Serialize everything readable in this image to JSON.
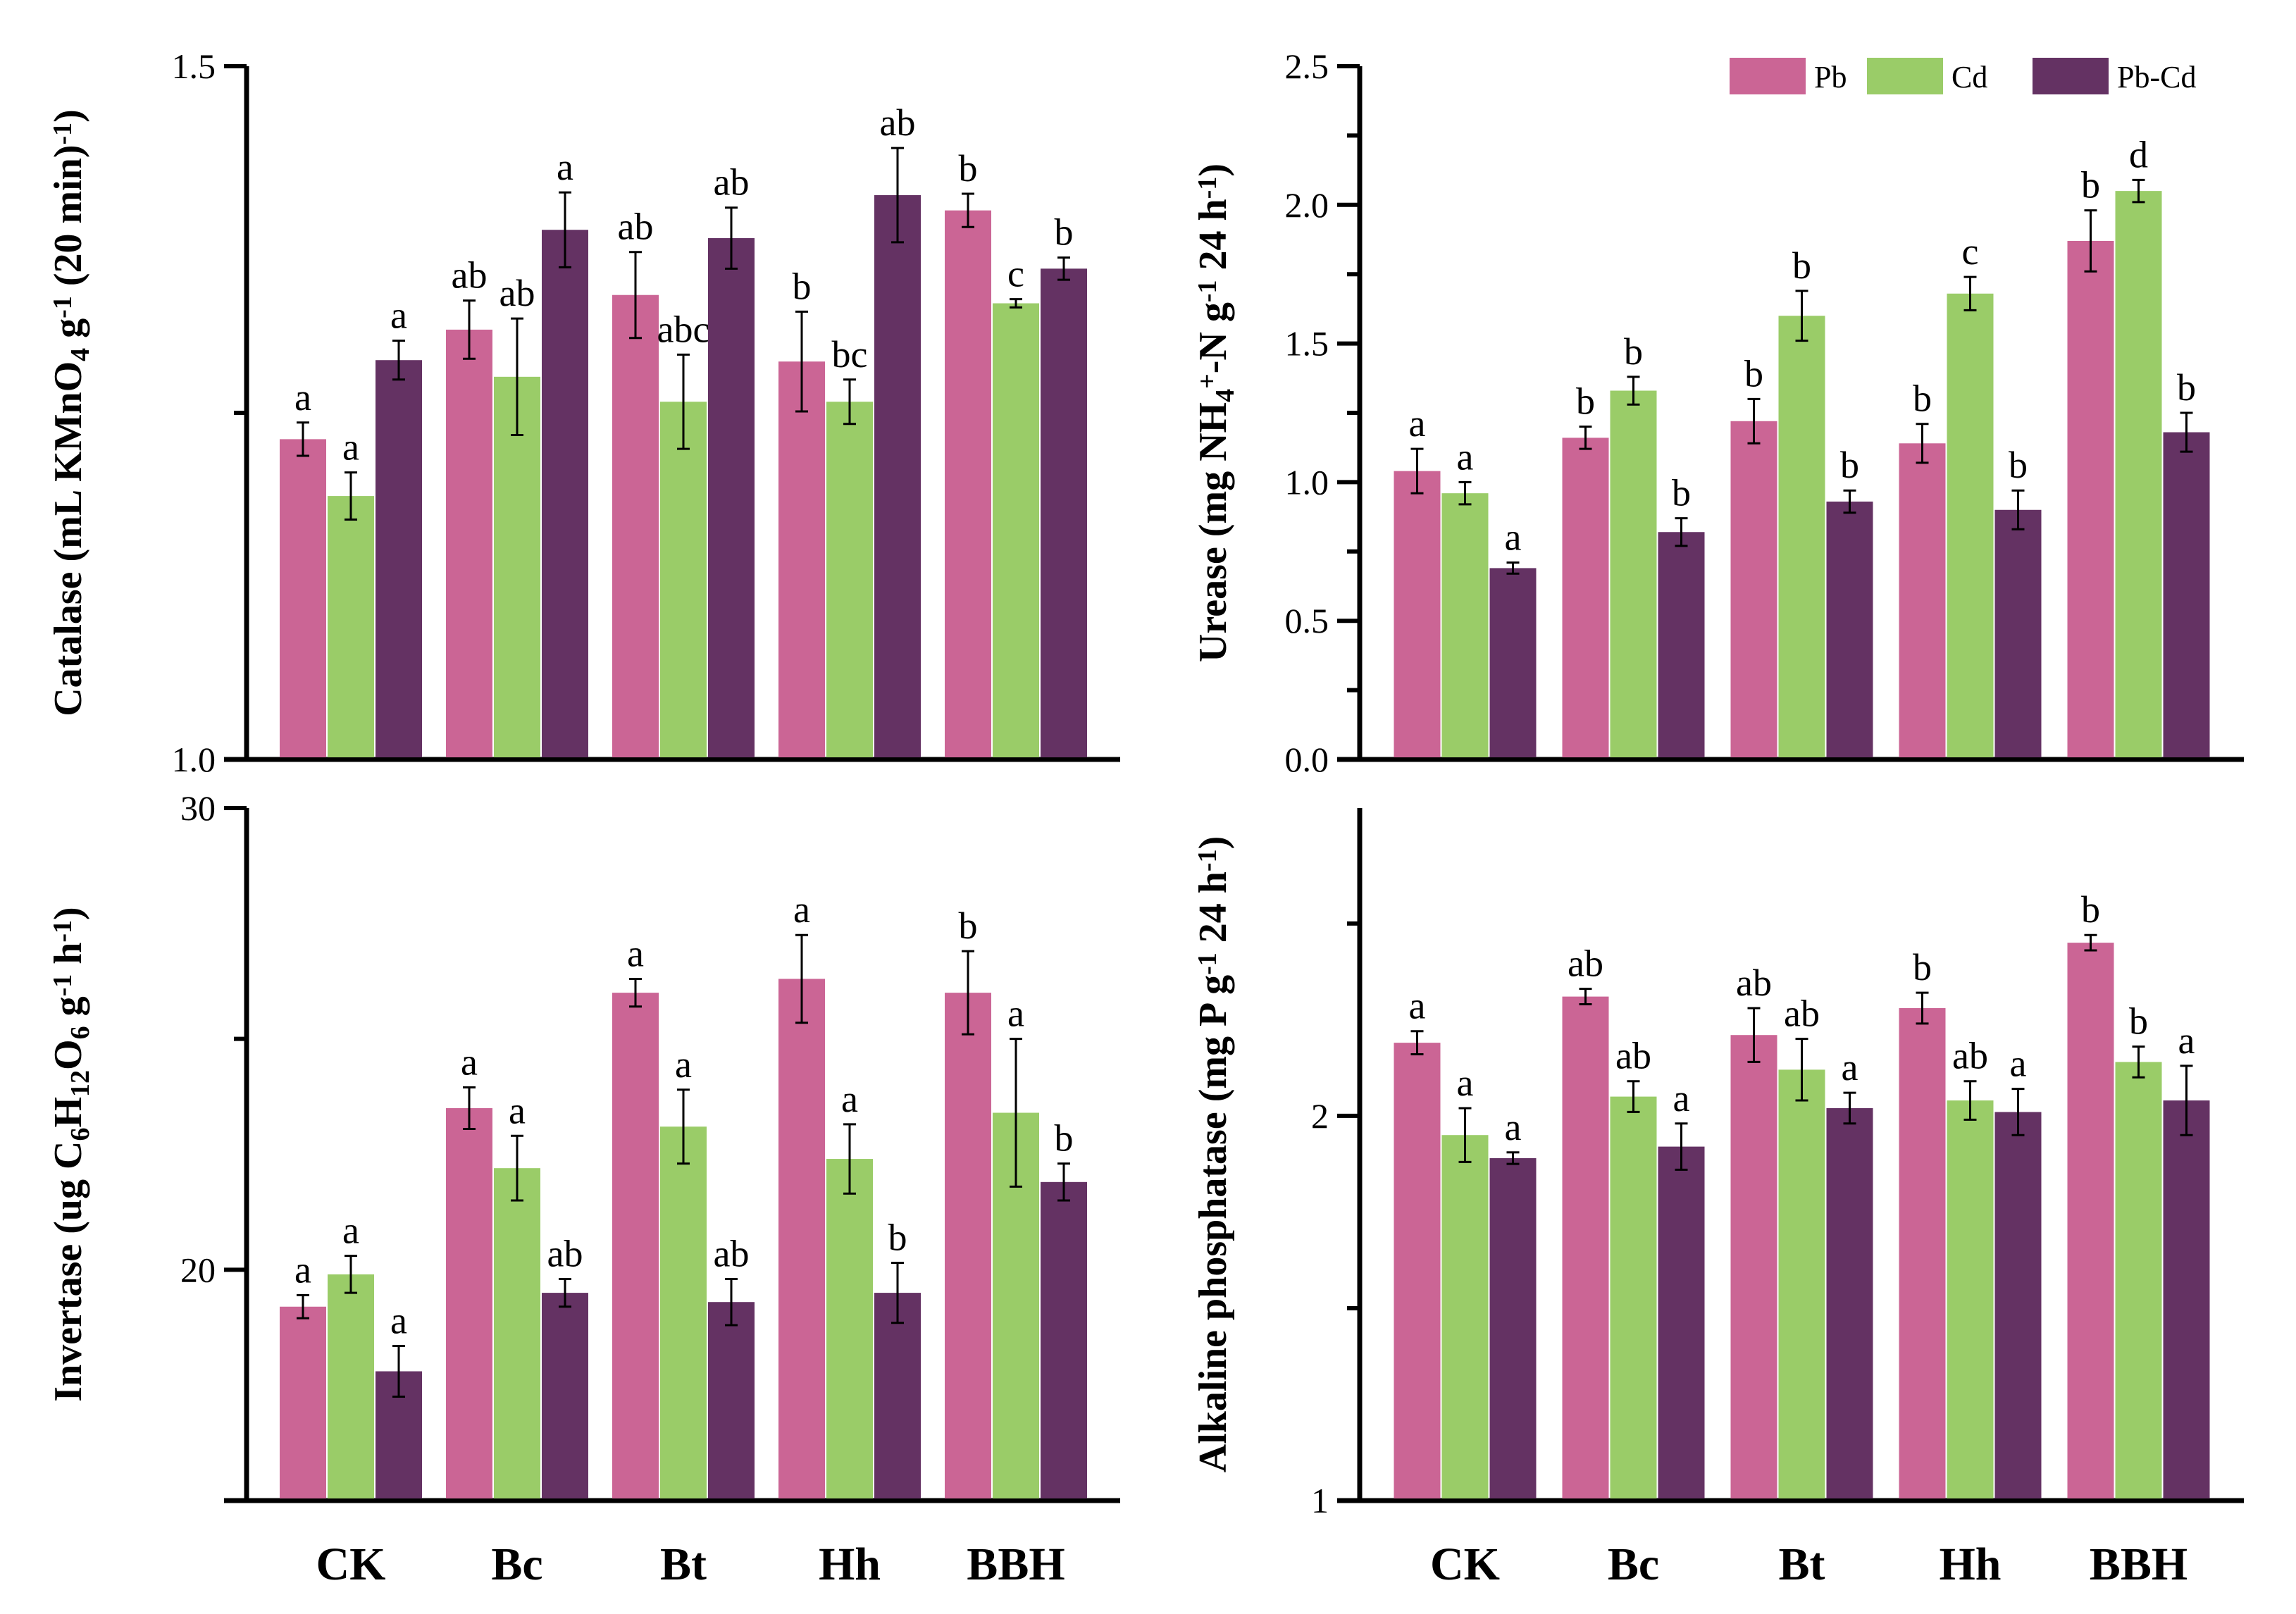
{
  "figure": {
    "legend": [
      {
        "name": "Pb",
        "color": "#CB6595"
      },
      {
        "name": "Cd",
        "color": "#9ACC68"
      },
      {
        "name": "Pb-Cd",
        "color": "#643263"
      }
    ],
    "legend_placement": "top-right of upper-right panel",
    "categories": [
      "CK",
      "Bc",
      "Bt",
      "Hh",
      "BBH"
    ]
  },
  "chart_data": [
    {
      "type": "bar",
      "panel": "top-left",
      "ylabel_parts": [
        {
          "t": "Catalase (mL KMnO"
        },
        {
          "t": "4",
          "sub": true
        },
        {
          "t": " g"
        },
        {
          "t": "-1",
          "sup": true
        },
        {
          "t": " (20 min)"
        },
        {
          "t": "-1",
          "sup": true
        },
        {
          "t": ")"
        }
      ],
      "ylabel": "Catalase (mL KMnO4 g-1 (20 min)-1)",
      "xlabel": "",
      "ylim": [
        1.0,
        1.5
      ],
      "yticks": [
        1.0,
        1.25,
        1.5
      ],
      "ytick_labels": [
        "1.0",
        "",
        "1.5"
      ],
      "show_category_labels": false,
      "categories": [
        "CK",
        "Bc",
        "Bt",
        "Hh",
        "BBH"
      ],
      "series": [
        {
          "name": "Pb",
          "values": [
            1.231,
            1.31,
            1.335,
            1.287,
            1.396
          ],
          "errors": [
            0.012,
            0.021,
            0.031,
            0.036,
            0.012
          ],
          "letters": [
            "a",
            "ab",
            "ab",
            "b",
            "b"
          ]
        },
        {
          "name": "Cd",
          "values": [
            1.19,
            1.276,
            1.258,
            1.258,
            1.329
          ],
          "errors": [
            0.017,
            0.042,
            0.034,
            0.016,
            0.003
          ],
          "letters": [
            "a",
            "ab",
            "abc",
            "bc",
            "c"
          ]
        },
        {
          "name": "Pb-Cd",
          "values": [
            1.288,
            1.382,
            1.376,
            1.407,
            1.354
          ],
          "errors": [
            0.014,
            0.027,
            0.022,
            0.034,
            0.008
          ],
          "letters": [
            "a",
            "a",
            "ab",
            "ab",
            "b"
          ]
        }
      ]
    },
    {
      "type": "bar",
      "panel": "top-right",
      "ylabel_parts": [
        {
          "t": "Urease (mg NH"
        },
        {
          "t": "4",
          "sub": true
        },
        {
          "t": "+",
          "sup": true
        },
        {
          "t": "-N g"
        },
        {
          "t": "-1",
          "sup": true
        },
        {
          "t": " 24 h"
        },
        {
          "t": "-1",
          "sup": true
        },
        {
          "t": ")"
        }
      ],
      "ylabel": "Urease (mg NH4+-N g-1 24 h-1)",
      "xlabel": "",
      "ylim": [
        0.0,
        2.5
      ],
      "yticks": [
        0.0,
        0.25,
        0.5,
        0.75,
        1.0,
        1.25,
        1.5,
        1.75,
        2.0,
        2.25,
        2.5
      ],
      "ytick_labels": [
        "0.0",
        "",
        "0.5",
        "",
        "1.0",
        "",
        "1.5",
        "",
        "2.0",
        "",
        "2.5"
      ],
      "show_category_labels": false,
      "show_legend": true,
      "categories": [
        "CK",
        "Bc",
        "Bt",
        "Hh",
        "BBH"
      ],
      "series": [
        {
          "name": "Pb",
          "values": [
            1.04,
            1.16,
            1.22,
            1.14,
            1.87
          ],
          "errors": [
            0.08,
            0.04,
            0.08,
            0.07,
            0.11
          ],
          "letters": [
            "a",
            "b",
            "b",
            "b",
            "b"
          ]
        },
        {
          "name": "Cd",
          "values": [
            0.96,
            1.33,
            1.6,
            1.68,
            2.05
          ],
          "errors": [
            0.04,
            0.05,
            0.09,
            0.06,
            0.04
          ],
          "letters": [
            "a",
            "b",
            "b",
            "c",
            "d"
          ]
        },
        {
          "name": "Pb-Cd",
          "values": [
            0.69,
            0.82,
            0.93,
            0.9,
            1.18
          ],
          "errors": [
            0.02,
            0.05,
            0.04,
            0.07,
            0.07
          ],
          "letters": [
            "a",
            "b",
            "b",
            "b",
            "b"
          ]
        }
      ]
    },
    {
      "type": "bar",
      "panel": "bottom-left",
      "ylabel_parts": [
        {
          "t": "Invertase (ug C"
        },
        {
          "t": "6",
          "sub": true
        },
        {
          "t": "H"
        },
        {
          "t": "12",
          "sub": true
        },
        {
          "t": "O"
        },
        {
          "t": "6",
          "sub": true
        },
        {
          "t": " g"
        },
        {
          "t": "-1",
          "sup": true
        },
        {
          "t": " h"
        },
        {
          "t": "-1",
          "sup": true
        },
        {
          "t": ")"
        }
      ],
      "ylabel": "Invertase (ug C6H12O6 g-1 h-1)",
      "xlabel": "",
      "ylim": [
        15,
        30
      ],
      "yticks": [
        20,
        25,
        30
      ],
      "ytick_labels": [
        "20",
        "",
        "30"
      ],
      "show_category_labels": true,
      "categories": [
        "CK",
        "Bc",
        "Bt",
        "Hh",
        "BBH"
      ],
      "series": [
        {
          "name": "Pb",
          "values": [
            19.2,
            23.5,
            26.0,
            26.3,
            26.0
          ],
          "errors": [
            0.25,
            0.45,
            0.3,
            0.95,
            0.9
          ],
          "letters": [
            "a",
            "a",
            "a",
            "a",
            "b"
          ]
        },
        {
          "name": "Cd",
          "values": [
            19.9,
            22.2,
            23.1,
            22.4,
            23.4
          ],
          "errors": [
            0.4,
            0.7,
            0.8,
            0.75,
            1.6
          ],
          "letters": [
            "a",
            "a",
            "a",
            "a",
            "a"
          ]
        },
        {
          "name": "Pb-Cd",
          "values": [
            17.8,
            19.5,
            19.3,
            19.5,
            21.9
          ],
          "errors": [
            0.55,
            0.3,
            0.5,
            0.65,
            0.4
          ],
          "letters": [
            "a",
            "ab",
            "ab",
            "b",
            "b"
          ]
        }
      ]
    },
    {
      "type": "bar",
      "panel": "bottom-right",
      "ylabel_parts": [
        {
          "t": "Alkaline phosphatase (mg P g"
        },
        {
          "t": "-1",
          "sup": true
        },
        {
          "t": " 24 h"
        },
        {
          "t": "-1",
          "sup": true
        },
        {
          "t": ")"
        }
      ],
      "ylabel": "Alkaline phosphatase (mg P g-1 24 h-1)",
      "xlabel": "",
      "ylim": [
        1,
        2.8
      ],
      "yticks": [
        1,
        1.5,
        2,
        2.5
      ],
      "ytick_labels": [
        "1",
        "",
        "2",
        ""
      ],
      "show_category_labels": true,
      "categories": [
        "CK",
        "Bc",
        "Bt",
        "Hh",
        "BBH"
      ],
      "series": [
        {
          "name": "Pb",
          "values": [
            2.19,
            2.31,
            2.21,
            2.28,
            2.45
          ],
          "errors": [
            0.03,
            0.02,
            0.07,
            0.04,
            0.02
          ],
          "letters": [
            "a",
            "ab",
            "ab",
            "b",
            "b"
          ]
        },
        {
          "name": "Cd",
          "values": [
            1.95,
            2.05,
            2.12,
            2.04,
            2.14
          ],
          "errors": [
            0.07,
            0.04,
            0.08,
            0.05,
            0.04
          ],
          "letters": [
            "a",
            "ab",
            "ab",
            "ab",
            "b"
          ]
        },
        {
          "name": "Pb-Cd",
          "values": [
            1.89,
            1.92,
            2.02,
            2.01,
            2.04
          ],
          "errors": [
            0.015,
            0.06,
            0.04,
            0.06,
            0.09
          ],
          "letters": [
            "a",
            "a",
            "a",
            "a",
            "a"
          ]
        }
      ]
    }
  ]
}
